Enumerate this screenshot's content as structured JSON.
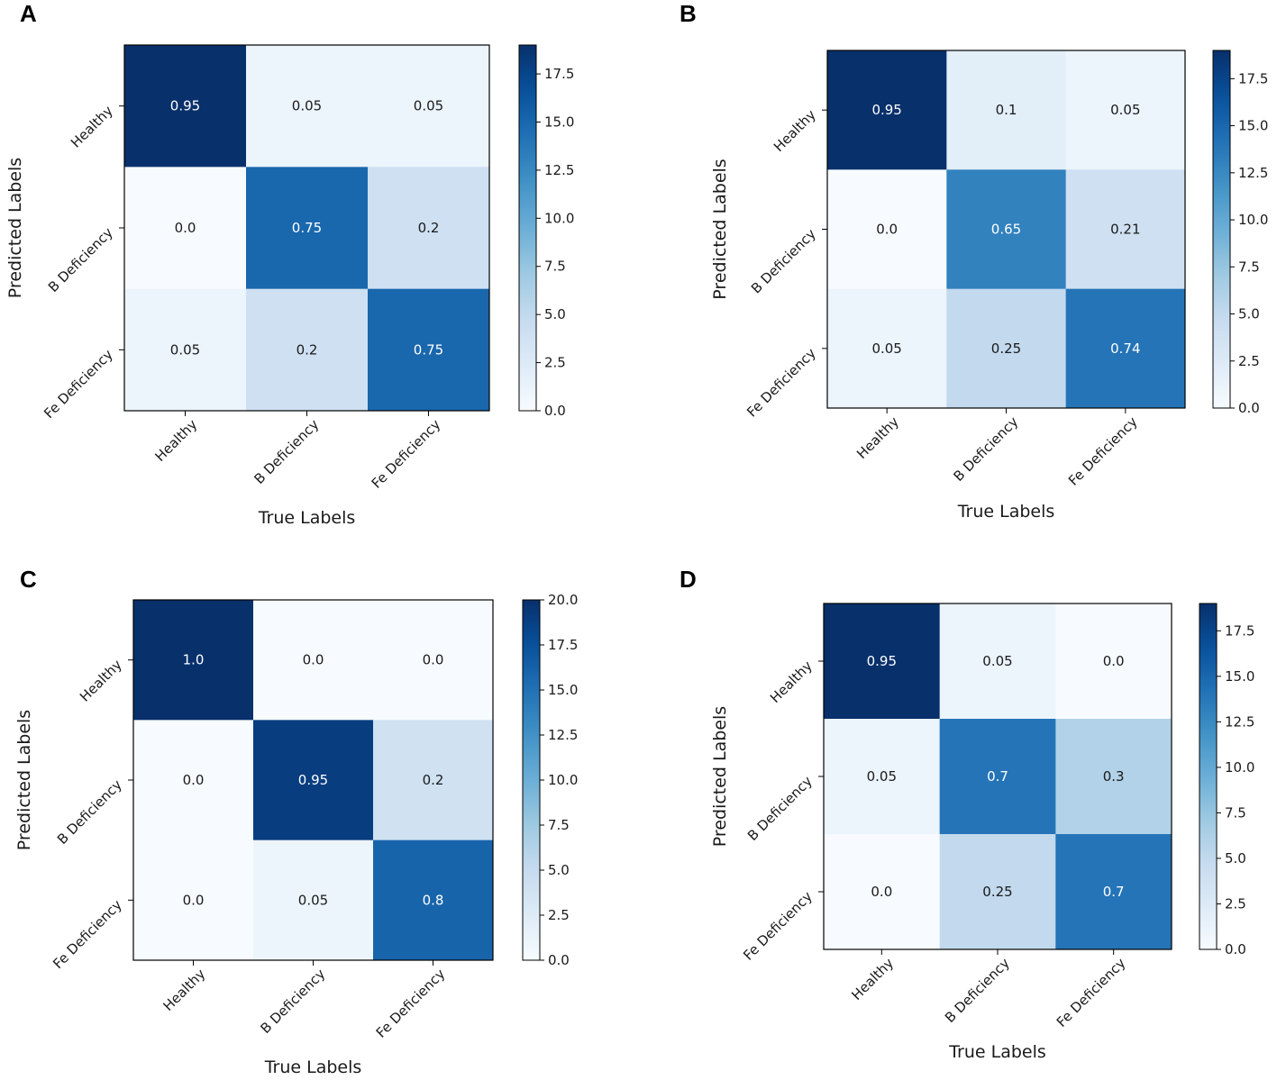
{
  "figure": {
    "colors": {
      "low": "#f7fbff",
      "high": "#08306b",
      "axis": "#000000",
      "text_dark": "#1a1a1a",
      "text_light": "#ffffff"
    }
  },
  "chart_data": [
    {
      "panel": "A",
      "type": "heatmap",
      "xlabel": "True Labels",
      "ylabel": "Predicted Labels",
      "x_categories": [
        "Healthy",
        "B Deficiency",
        "Fe Deficiency"
      ],
      "y_categories": [
        "Healthy",
        "B Deficiency",
        "Fe Deficiency"
      ],
      "values": [
        [
          0.95,
          0.05,
          0.05
        ],
        [
          0.0,
          0.75,
          0.2
        ],
        [
          0.05,
          0.2,
          0.75
        ]
      ],
      "value_labels": [
        [
          "0.95",
          "0.05",
          "0.05"
        ],
        [
          "0.0",
          "0.75",
          "0.2"
        ],
        [
          "0.05",
          "0.2",
          "0.75"
        ]
      ],
      "counts": [
        [
          19,
          1,
          1
        ],
        [
          0,
          15,
          4
        ],
        [
          1,
          4,
          15
        ]
      ],
      "colorbar": {
        "min": 0,
        "max": 19,
        "ticks": [
          "0.0",
          "2.5",
          "5.0",
          "7.5",
          "10.0",
          "12.5",
          "15.0",
          "17.5"
        ]
      }
    },
    {
      "panel": "B",
      "type": "heatmap",
      "xlabel": "True Labels",
      "ylabel": "Predicted Labels",
      "x_categories": [
        "Healthy",
        "B Deficiency",
        "Fe Deficiency"
      ],
      "y_categories": [
        "Healthy",
        "B Deficiency",
        "Fe Deficiency"
      ],
      "values": [
        [
          0.95,
          0.1,
          0.05
        ],
        [
          0.0,
          0.65,
          0.21
        ],
        [
          0.05,
          0.25,
          0.74
        ]
      ],
      "value_labels": [
        [
          "0.95",
          "0.1",
          "0.05"
        ],
        [
          "0.0",
          "0.65",
          "0.21"
        ],
        [
          "0.05",
          "0.25",
          "0.74"
        ]
      ],
      "counts": [
        [
          19,
          2,
          1
        ],
        [
          0,
          13,
          4
        ],
        [
          1,
          5,
          14
        ]
      ],
      "colorbar": {
        "min": 0,
        "max": 19,
        "ticks": [
          "0.0",
          "2.5",
          "5.0",
          "7.5",
          "10.0",
          "12.5",
          "15.0",
          "17.5"
        ]
      }
    },
    {
      "panel": "C",
      "type": "heatmap",
      "xlabel": "True Labels",
      "ylabel": "Predicted Labels",
      "x_categories": [
        "Healthy",
        "B Deficiency",
        "Fe Deficiency"
      ],
      "y_categories": [
        "Healthy",
        "B Deficiency",
        "Fe Deficiency"
      ],
      "values": [
        [
          1.0,
          0.0,
          0.0
        ],
        [
          0.0,
          0.95,
          0.2
        ],
        [
          0.0,
          0.05,
          0.8
        ]
      ],
      "value_labels": [
        [
          "1.0",
          "0.0",
          "0.0"
        ],
        [
          "0.0",
          "0.95",
          "0.2"
        ],
        [
          "0.0",
          "0.05",
          "0.8"
        ]
      ],
      "counts": [
        [
          20,
          0,
          0
        ],
        [
          0,
          19,
          4
        ],
        [
          0,
          1,
          16
        ]
      ],
      "colorbar": {
        "min": 0,
        "max": 20,
        "ticks": [
          "0.0",
          "2.5",
          "5.0",
          "7.5",
          "10.0",
          "12.5",
          "15.0",
          "17.5",
          "20.0"
        ]
      }
    },
    {
      "panel": "D",
      "type": "heatmap",
      "xlabel": "True Labels",
      "ylabel": "Predicted Labels",
      "x_categories": [
        "Healthy",
        "B Deficiency",
        "Fe Deficiency"
      ],
      "y_categories": [
        "Healthy",
        "B Deficiency",
        "Fe Deficiency"
      ],
      "values": [
        [
          0.95,
          0.05,
          0.0
        ],
        [
          0.05,
          0.7,
          0.3
        ],
        [
          0.0,
          0.25,
          0.7
        ]
      ],
      "value_labels": [
        [
          "0.95",
          "0.05",
          "0.0"
        ],
        [
          "0.05",
          "0.7",
          "0.3"
        ],
        [
          "0.0",
          "0.25",
          "0.7"
        ]
      ],
      "counts": [
        [
          19,
          1,
          0
        ],
        [
          1,
          14,
          6
        ],
        [
          0,
          5,
          14
        ]
      ],
      "colorbar": {
        "min": 0,
        "max": 19,
        "ticks": [
          "0.0",
          "2.5",
          "5.0",
          "7.5",
          "10.0",
          "12.5",
          "15.0",
          "17.5"
        ]
      }
    }
  ]
}
